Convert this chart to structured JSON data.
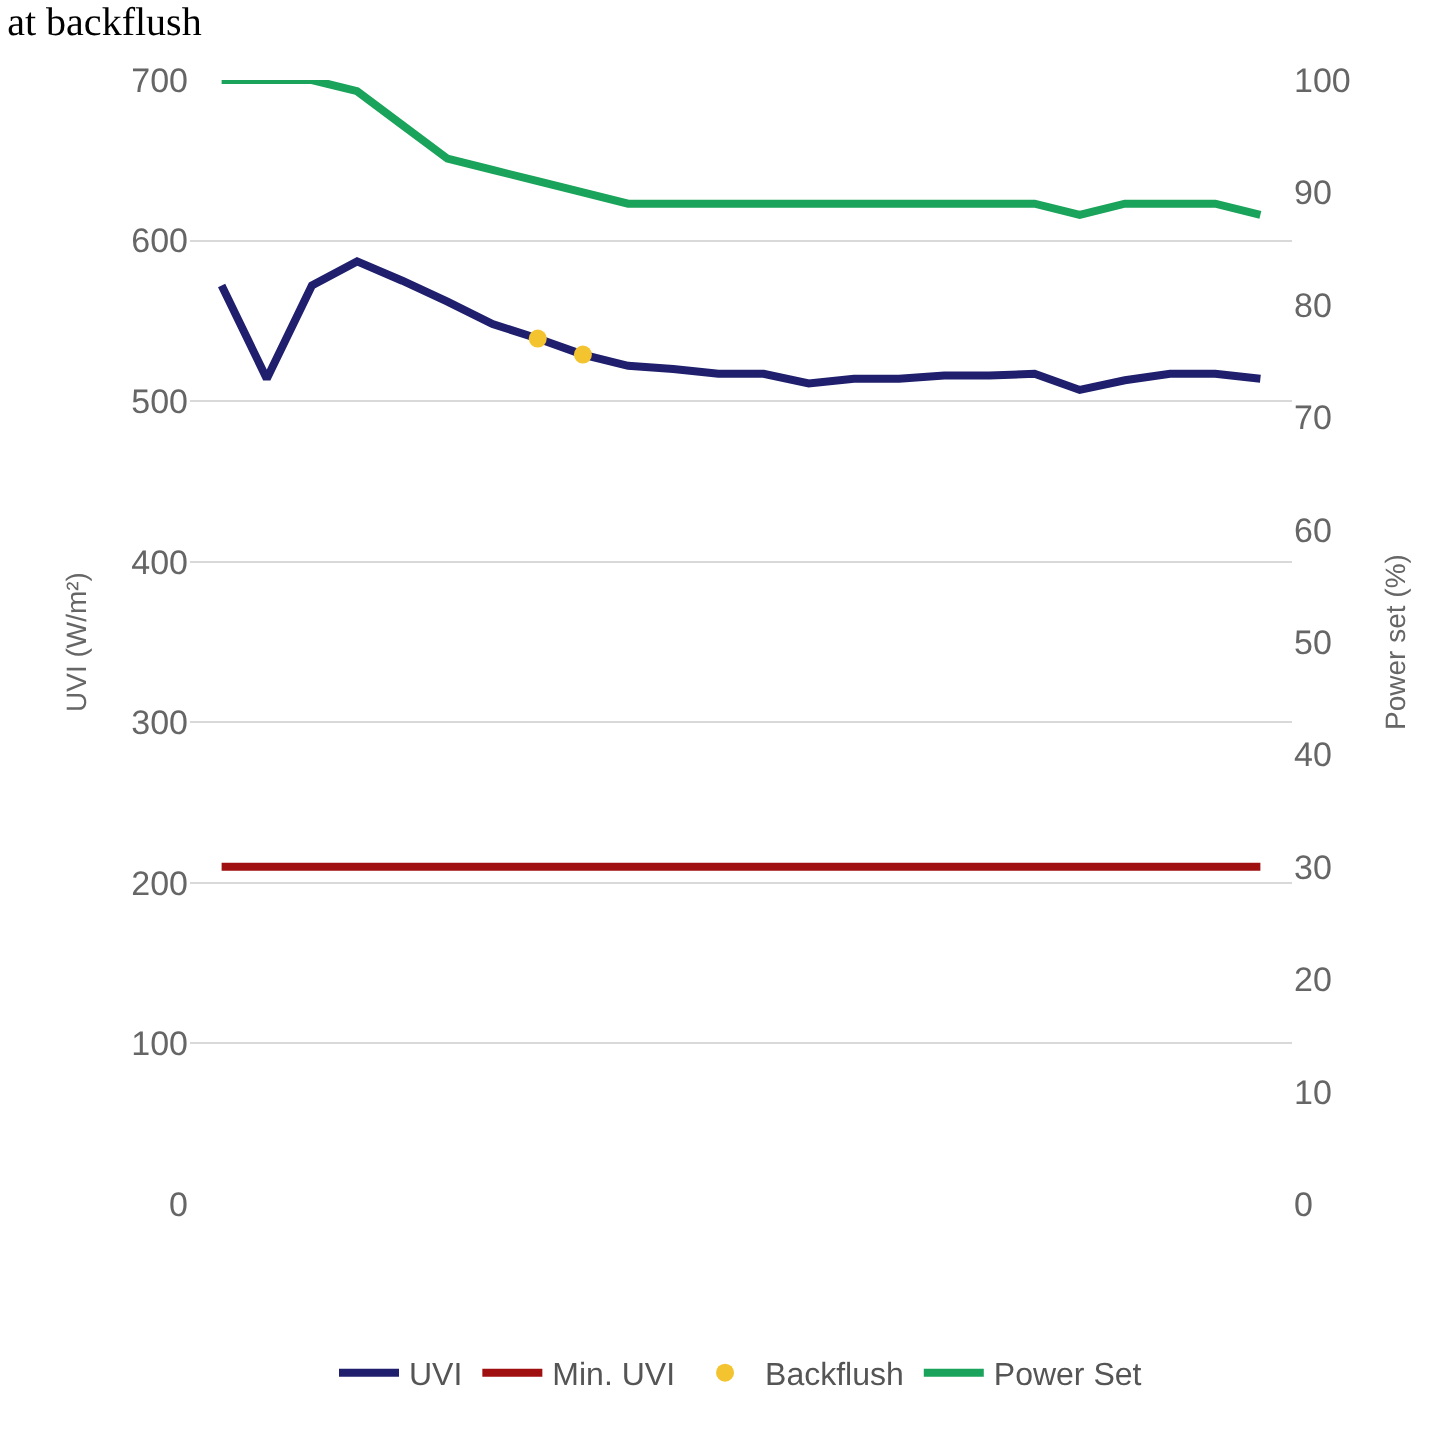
{
  "chart_data": {
    "type": "line",
    "title": "at backflush",
    "ylabel": "UVI (W/m²)",
    "y2label": "Power set (%)",
    "categories": [
      null,
      null,
      null,
      null,
      null,
      null,
      null,
      null,
      null,
      null,
      null,
      null,
      null,
      null,
      null,
      null,
      null,
      null,
      null,
      null,
      null,
      null,
      null,
      null
    ],
    "series": [
      {
        "name": "UVI",
        "color": "#1f1f6e",
        "values": [
          572,
          514,
          572,
          587,
          575,
          562,
          548,
          539,
          529,
          522,
          520,
          517,
          517,
          511,
          514,
          514,
          516,
          516,
          517,
          507,
          513,
          517,
          517,
          514
        ]
      },
      {
        "name": "Min. UVI",
        "color": "#a01010",
        "values": [
          210,
          210,
          210,
          210,
          210,
          210,
          210,
          210,
          210,
          210,
          210,
          210,
          210,
          210,
          210,
          210,
          210,
          210,
          210,
          210,
          210,
          210,
          210,
          210
        ]
      },
      {
        "name": "Backflush",
        "type": "scatter",
        "marker": "circle",
        "color": "#f4c430",
        "values": [
          null,
          null,
          null,
          null,
          null,
          null,
          null,
          539,
          529,
          null,
          null,
          null,
          null,
          null,
          null,
          null,
          null,
          null,
          null,
          null,
          null,
          null,
          null,
          null
        ]
      },
      {
        "name": "Power Set",
        "color": "#1aa35a",
        "axis": "y2",
        "values": [
          100,
          100,
          100,
          99,
          96,
          93,
          92,
          91,
          90,
          89,
          89,
          89,
          89,
          89,
          89,
          89,
          89,
          89,
          89,
          88,
          89,
          89,
          89,
          88
        ]
      }
    ],
    "ylim": [
      0,
      700
    ],
    "yticks": [
      0,
      100,
      200,
      300,
      400,
      500,
      600,
      700
    ],
    "y2lim": [
      0,
      100
    ],
    "y2ticks": [
      0,
      10,
      20,
      30,
      40,
      50,
      60,
      70,
      80,
      90,
      100
    ],
    "grid": "y",
    "legend": "bottom",
    "marker": "none",
    "line_style": "solid"
  }
}
